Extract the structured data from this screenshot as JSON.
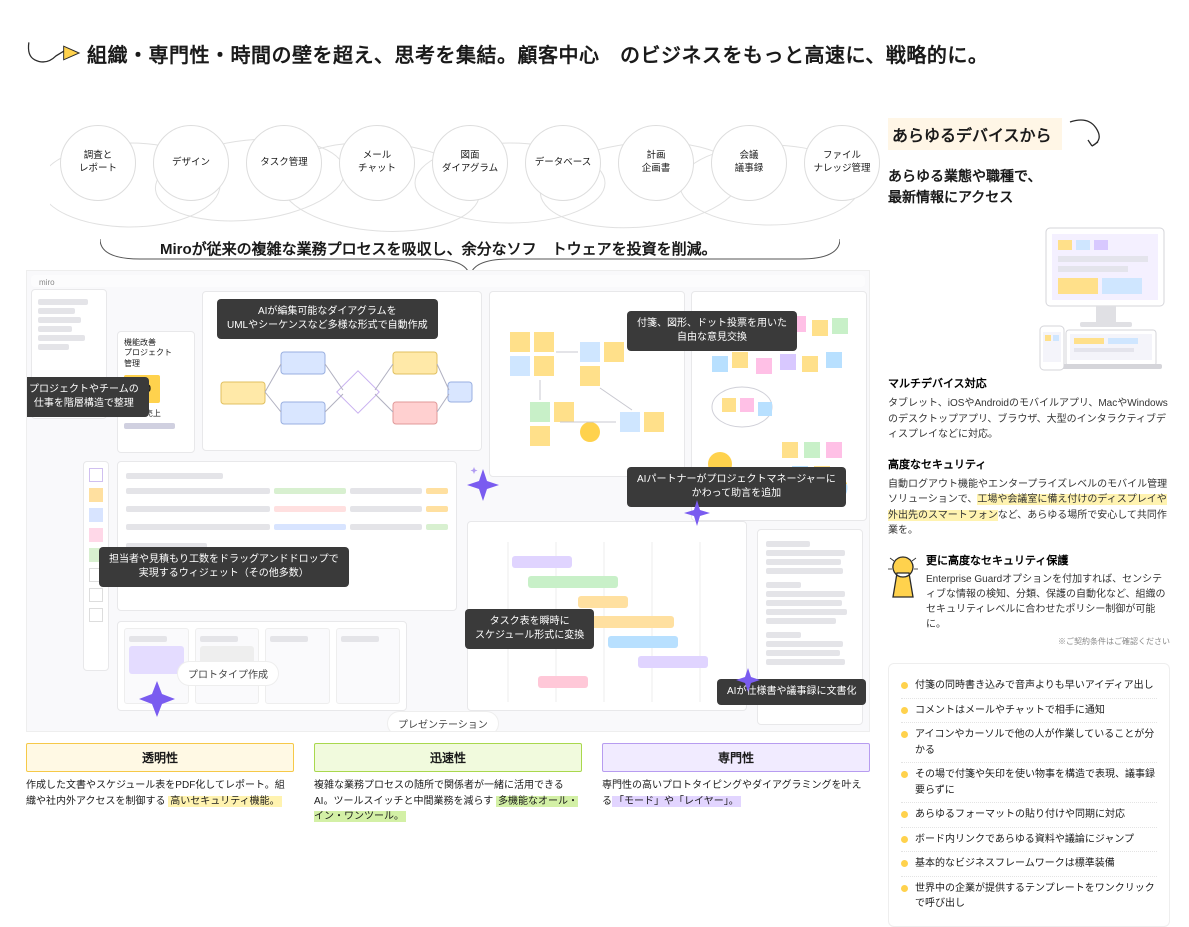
{
  "colors": {
    "callout_bg": "#3a3a3a",
    "highlight_yellow": "#fff3b0",
    "highlight_green": "#d3f0a6",
    "highlight_purple": "#e2d5ff",
    "pillar_yellow_border": "#f6c948",
    "pillar_yellow_bg": "#fff9e4",
    "pillar_green_border": "#a9d84d",
    "pillar_green_bg": "#f1fadd",
    "pillar_purple_border": "#b79cf0",
    "pillar_purple_bg": "#f1ebff",
    "sparkle": "#7a5cf0",
    "kpi_yellow": "#ffd24d",
    "right_head_bg": "#fff6e6",
    "bullet": "#ffd24d"
  },
  "hero": {
    "title": "組織・専門性・時間の壁を超え、思考を集結。顧客中心　のビジネスをもっと高速に、戦略的に。"
  },
  "bubbles": [
    "調査と\nレポート",
    "デザイン",
    "タスク管理",
    "メール\nチャット",
    "図面\nダイアグラム",
    "データベース",
    "計画\n企画書",
    "会議\n議事録",
    "ファイル\nナレッジ管理"
  ],
  "sub_title": "Miroが従来の複雑な業務プロセスを吸収し、余分なソフ　トウェアを投資を削減。",
  "callouts": {
    "sidebar": "プロジェクトやチームの\n仕事を階層構造で整理",
    "diagram": "AIが編集可能なダイアグラムを\nUMLやシーケンスなど多様な形式で自動作成",
    "free": "付箋、図形、ドット投票を用いた\n自由な意見交換",
    "widget": "担当者や見積もり工数をドラッグアンドドロップで\n実現するウィジェット（その他多数）",
    "ai_pm": "AIパートナーがプロジェクトマネージャーに\nかわって助言を追加",
    "gantt": "タスク表を瞬時に\nスケジュール形式に変換",
    "ai_doc": "AIが仕様書や議事録に文書化",
    "proto": "プロトタイプ作成",
    "present": "プレゼンテーション"
  },
  "kpi": {
    "title": "機能改善\nプロジェクト\n管理",
    "value": "400",
    "label": "KPI：売上"
  },
  "pillars": [
    {
      "title": "透明性",
      "body_pre": "作成した文書やスケジュール表をPDF化してレポート。組織や社内外アクセスを制御する ",
      "body_hl": "高いセキュリティ機能。",
      "body_post": ""
    },
    {
      "title": "迅速性",
      "body_pre": "複雑な業務プロセスの随所で関係者が一緒に活用できるAI。ツールスイッチと中間業務を減らす ",
      "body_hl": "多機能なオール・イン・ワンツール。",
      "body_post": ""
    },
    {
      "title": "専門性",
      "body_pre": "専門性の高いプロトタイピングやダイアグラミングを叶える",
      "body_hl": "「モード」や「レイヤー」。",
      "body_post": ""
    }
  ],
  "right": {
    "head": "あらゆるデバイスから",
    "sub": "あらゆる業態や職種で、\n最新情報にアクセス",
    "multi": {
      "title": "マルチデバイス対応",
      "body": "タブレット、iOSやAndroidのモバイルアプリ、MacやWindowsのデスクトップアプリ、ブラウザ、大型のインタラクティブディスプレイなどに対応。"
    },
    "security": {
      "title": "高度なセキュリティ",
      "body_pre": "自動ログアウト機能やエンタープライズレベルのモバイル管理ソリューションで、",
      "body_hl": "工場や会議室に備え付けのディスプレイや外出先のスマートフォン",
      "body_post": "など、あらゆる場所で安心して共同作業を。"
    },
    "enterprise": {
      "title": "更に高度なセキュリティ保護",
      "body": "Enterprise Guardオプションを付加すれば、センシティブな情報の検知、分類、保護の自動化など、組織のセキュリティレベルに合わせたポリシー制御が可能に。",
      "note": "※ご契約条件はご確認ください"
    },
    "features": [
      "付箋の同時書き込みで音声よりも早いアイディア出し",
      "コメントはメールやチャットで相手に通知",
      "アイコンやカーソルで他の人が作業していることが分かる",
      "その場で付箋や矢印を使い物事を構造で表現、議事録要らずに",
      "あらゆるフォーマットの貼り付けや同期に対応",
      "ボード内リンクであらゆる資料や議論にジャンプ",
      "基本的なビジネスフレームワークは標準装備",
      "世界中の企業が提供するテンプレートをワンクリックで呼び出し"
    ]
  }
}
